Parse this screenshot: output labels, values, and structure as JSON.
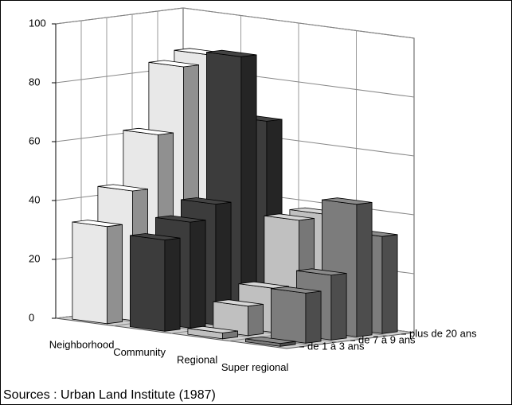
{
  "chart_data": {
    "type": "bar3d",
    "categories": [
      "Neighborhood",
      "Community",
      "Regional",
      "Super regional"
    ],
    "colors": [
      "#e8e8e8",
      "#3c3c3c",
      "#c0c0c0",
      "#7c7c7c"
    ],
    "series": [
      {
        "name": "de 1 à 3 ans",
        "values": [
          33,
          31,
          2,
          1
        ]
      },
      {
        "name": null,
        "values": [
          44,
          36,
          10,
          17
        ]
      },
      {
        "name": "de 7 à 9 ans",
        "values": [
          62,
          41,
          15,
          22
        ]
      },
      {
        "name": null,
        "values": [
          84,
          90,
          37,
          45
        ]
      },
      {
        "name": "plus de 20 ans",
        "values": [
          87,
          67,
          38,
          33
        ]
      }
    ],
    "ylim": [
      0,
      100
    ],
    "yticks": [
      0,
      20,
      40,
      60,
      80,
      100
    ],
    "grid": true,
    "caption": "Sources : Urban Land Institute (1987)"
  }
}
